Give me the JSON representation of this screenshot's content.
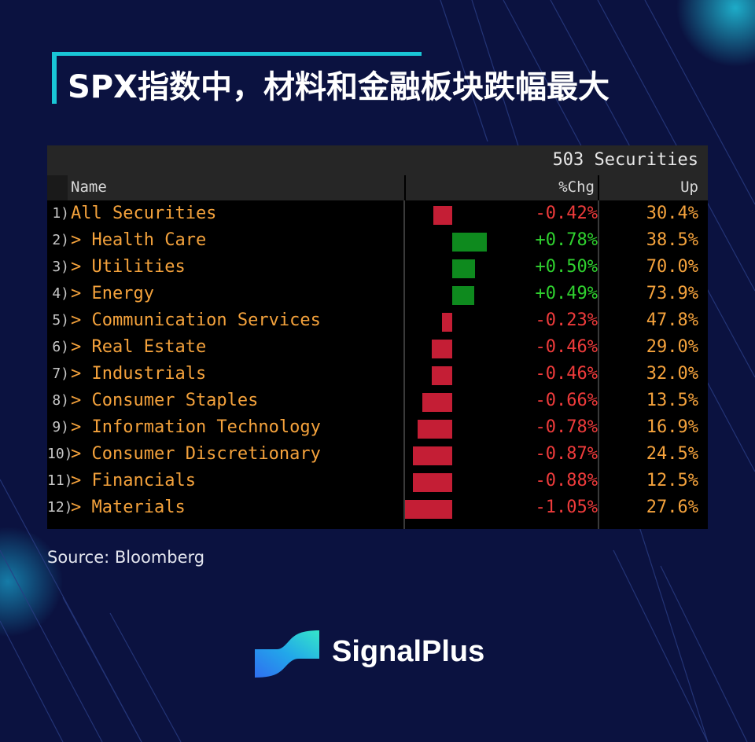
{
  "title": "SPX指数中，材料和金融板块跌幅最大",
  "colors": {
    "background": "#0b1240",
    "accent": "#19c6d6",
    "positive": "#2fd12f",
    "negative": "#ee3b3b",
    "label": "#f4a23c"
  },
  "table": {
    "securities_label": "503 Securities",
    "columns": {
      "name": "Name",
      "chg": "%Chg",
      "up": "Up"
    }
  },
  "chart_data": {
    "type": "bar",
    "orientation": "horizontal",
    "categories": [
      "All Securities",
      "> Health Care",
      "> Utilities",
      "> Energy",
      "> Communication Services",
      "> Real Estate",
      "> Industrials",
      "> Consumer Staples",
      "> Information Technology",
      "> Consumer Discretionary",
      "> Financials",
      "> Materials"
    ],
    "row_numbers": [
      "1)",
      "2)",
      "3)",
      "4)",
      "5)",
      "6)",
      "7)",
      "8)",
      "9)",
      "10)",
      "11)",
      "12)"
    ],
    "values": [
      -0.42,
      0.78,
      0.5,
      0.49,
      -0.23,
      -0.46,
      -0.46,
      -0.66,
      -0.78,
      -0.87,
      -0.88,
      -1.05
    ],
    "value_labels": [
      "-0.42%",
      "+0.78%",
      "+0.50%",
      "+0.49%",
      "-0.23%",
      "-0.46%",
      "-0.46%",
      "-0.66%",
      "-0.78%",
      "-0.87%",
      "-0.88%",
      "-1.05%"
    ],
    "up_labels": [
      "30.4%",
      "38.5%",
      "70.0%",
      "73.9%",
      "47.8%",
      "29.0%",
      "32.0%",
      "13.5%",
      "16.9%",
      "24.5%",
      "12.5%",
      "27.6%"
    ]
  },
  "source": "Source: Bloomberg",
  "logo": {
    "name": "SignalPlus",
    "icon": "signalplus-logo-icon"
  }
}
